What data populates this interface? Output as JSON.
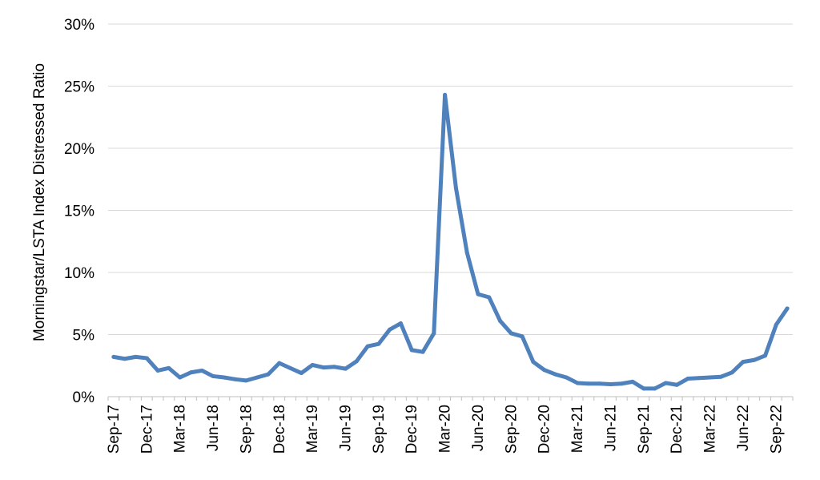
{
  "chart_data": {
    "type": "line",
    "ylabel": "Morningstar/LSTA Index Distressed Ratio",
    "ylim": [
      0,
      30
    ],
    "yticks": [
      "0%",
      "5%",
      "10%",
      "15%",
      "20%",
      "25%",
      "30%"
    ],
    "ytick_values": [
      0,
      5,
      10,
      15,
      20,
      25,
      30
    ],
    "grid": true,
    "line_color": "#4f81bd",
    "x_tick_labels": [
      "Sep-17",
      "Dec-17",
      "Mar-18",
      "Jun-18",
      "Sep-18",
      "Dec-18",
      "Mar-19",
      "Jun-19",
      "Sep-19",
      "Dec-19",
      "Mar-20",
      "Jun-20",
      "Sep-20",
      "Dec-20",
      "Mar-21",
      "Jun-21",
      "Sep-21",
      "Dec-21",
      "Mar-22",
      "Jun-22",
      "Sep-22"
    ],
    "x": [
      "Sep-17",
      "Oct-17",
      "Nov-17",
      "Dec-17",
      "Jan-18",
      "Feb-18",
      "Mar-18",
      "Apr-18",
      "May-18",
      "Jun-18",
      "Jul-18",
      "Aug-18",
      "Sep-18",
      "Oct-18",
      "Nov-18",
      "Dec-18",
      "Jan-19",
      "Feb-19",
      "Mar-19",
      "Apr-19",
      "May-19",
      "Jun-19",
      "Jul-19",
      "Aug-19",
      "Sep-19",
      "Oct-19",
      "Nov-19",
      "Dec-19",
      "Jan-20",
      "Feb-20",
      "Mar-20",
      "Apr-20",
      "May-20",
      "Jun-20",
      "Jul-20",
      "Aug-20",
      "Sep-20",
      "Oct-20",
      "Nov-20",
      "Dec-20",
      "Jan-21",
      "Feb-21",
      "Mar-21",
      "Apr-21",
      "May-21",
      "Jun-21",
      "Jul-21",
      "Aug-21",
      "Sep-21",
      "Oct-21",
      "Nov-21",
      "Dec-21",
      "Jan-22",
      "Feb-22",
      "Mar-22",
      "Apr-22",
      "May-22",
      "Jun-22",
      "Jul-22",
      "Aug-22",
      "Sep-22",
      "Oct-22"
    ],
    "series": [
      {
        "values": [
          3.2,
          3.05,
          3.2,
          3.1,
          2.1,
          2.3,
          1.55,
          1.95,
          2.1,
          1.65,
          1.55,
          1.4,
          1.3,
          1.55,
          1.8,
          2.7,
          2.3,
          1.9,
          2.55,
          2.35,
          2.4,
          2.25,
          2.85,
          4.05,
          4.25,
          5.4,
          5.9,
          3.75,
          3.6,
          5.1,
          24.3,
          16.8,
          11.6,
          8.25,
          8.0,
          6.1,
          5.1,
          4.85,
          2.8,
          2.15,
          1.8,
          1.55,
          1.1,
          1.05,
          1.05,
          1.0,
          1.05,
          1.2,
          0.65,
          0.65,
          1.1,
          0.95,
          1.45,
          1.5,
          1.55,
          1.6,
          1.95,
          2.8,
          2.95,
          3.3,
          5.8,
          7.1
        ]
      }
    ]
  }
}
